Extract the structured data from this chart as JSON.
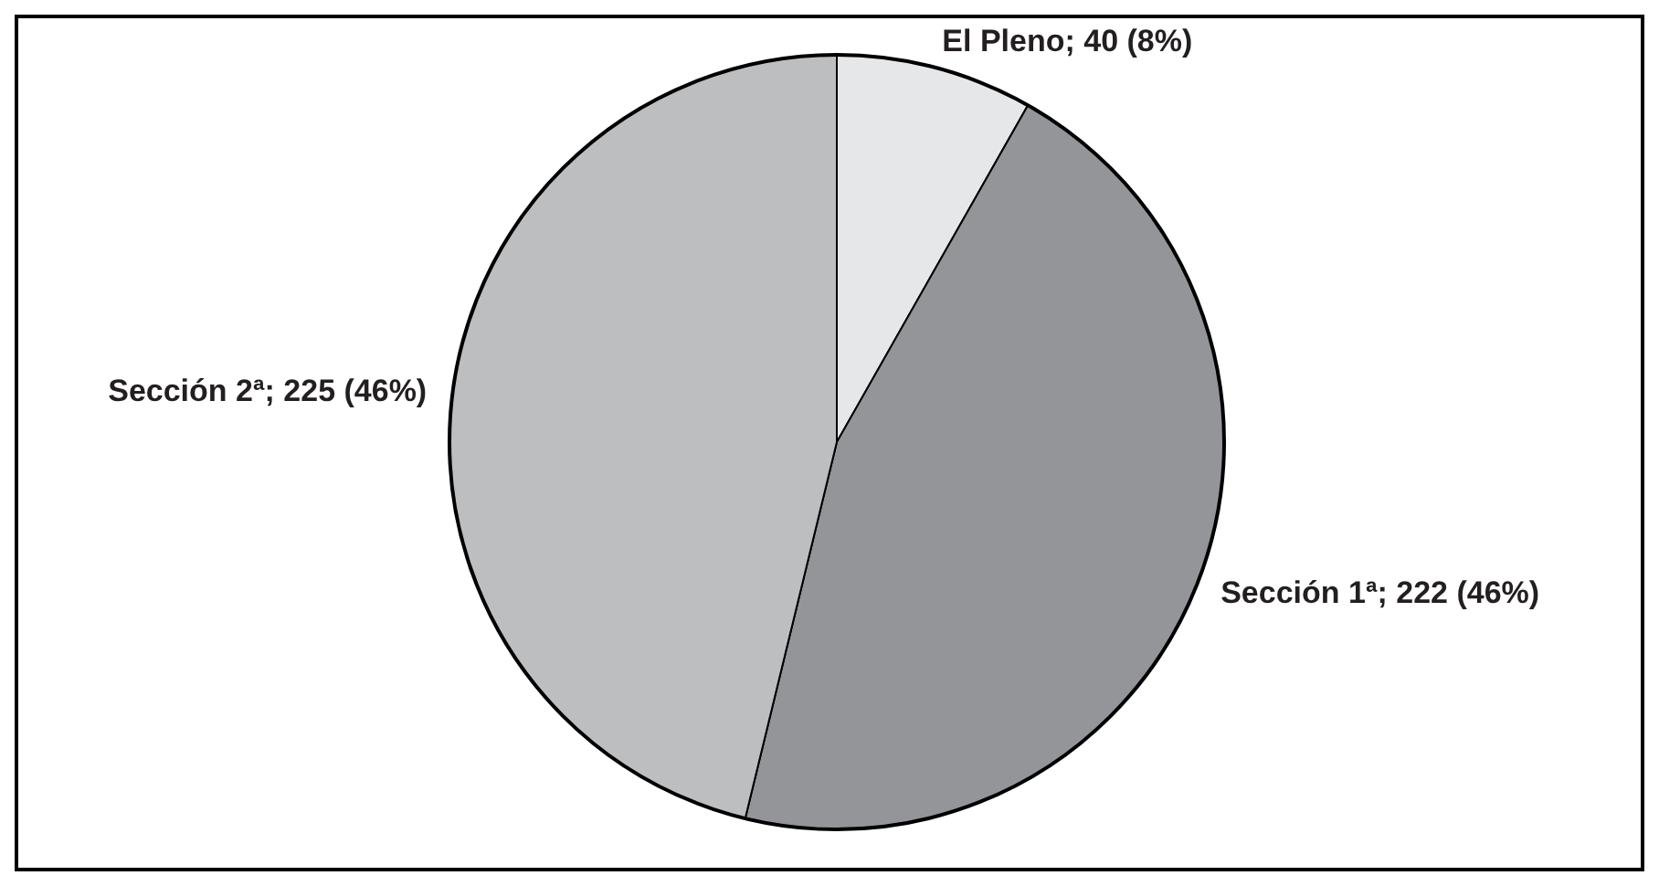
{
  "chart_data": {
    "type": "pie",
    "categories": [
      "El Pleno; 40 (8%)",
      "Sección 1ª; 222 (46%)",
      "Sección 2ª; 225 (46%)"
    ],
    "values": [
      40,
      222,
      225
    ],
    "colors": [
      "#e6e7e8",
      "#939598",
      "#bcbec0"
    ]
  }
}
